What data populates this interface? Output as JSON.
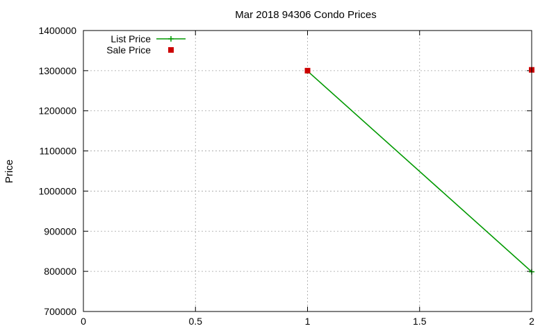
{
  "chart_data": {
    "type": "line",
    "title": "Mar 2018 94306 Condo Prices",
    "xlabel": "",
    "ylabel": "Price",
    "xlim": [
      0,
      2
    ],
    "ylim": [
      700000,
      1400000
    ],
    "x_ticks": [
      0,
      0.5,
      1,
      1.5,
      2
    ],
    "y_ticks": [
      700000,
      800000,
      900000,
      1000000,
      1100000,
      1200000,
      1300000,
      1400000
    ],
    "grid": true,
    "legend_position": "top-left",
    "series": [
      {
        "name": "List Price",
        "style": "lines-points",
        "marker": "plus",
        "color": "#009900",
        "points": [
          {
            "x": 1,
            "y": 1299000
          },
          {
            "x": 2,
            "y": 799000
          }
        ]
      },
      {
        "name": "Sale Price",
        "style": "points",
        "marker": "square",
        "color": "#cc0000",
        "points": [
          {
            "x": 1,
            "y": 1300000
          },
          {
            "x": 2,
            "y": 1302000
          }
        ]
      }
    ]
  }
}
